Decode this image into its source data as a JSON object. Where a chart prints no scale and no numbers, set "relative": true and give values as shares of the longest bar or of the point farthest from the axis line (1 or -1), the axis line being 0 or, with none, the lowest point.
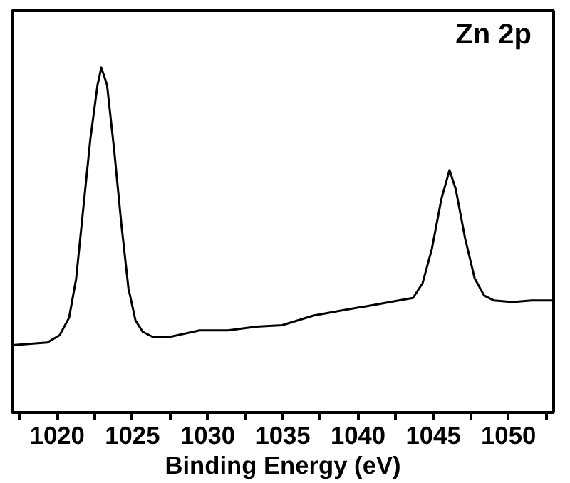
{
  "chart_data": {
    "type": "line",
    "relative": true,
    "xlabel": "Binding Energy (eV)",
    "annotations": [
      "Zn  2p"
    ],
    "xlim": [
      1017,
      1053
    ],
    "xticks": [
      {
        "value": 1017.5,
        "label": null
      },
      1020,
      {
        "value": 1022.5,
        "label": null
      },
      1025,
      {
        "value": 1027.5,
        "label": null
      },
      1030,
      {
        "value": 1032.5,
        "label": null
      },
      1035,
      {
        "value": 1037.5,
        "label": null
      },
      1040,
      {
        "value": 1042.5,
        "label": null
      },
      1045,
      {
        "value": 1047.5,
        "label": null
      },
      1050,
      {
        "value": 1052.5,
        "label": null
      }
    ],
    "tick_labels": "x",
    "grid": false,
    "series": [
      {
        "color": "#000000",
        "x": [
          1017.0,
          1019.34,
          1020.16,
          1020.79,
          1021.26,
          1021.73,
          1022.2,
          1022.68,
          1022.93,
          1023.31,
          1023.78,
          1024.26,
          1024.73,
          1025.2,
          1025.68,
          1026.31,
          1027.57,
          1029.46,
          1031.35,
          1033.25,
          1034.95,
          1037.03,
          1038.92,
          1040.81,
          1042.71,
          1043.65,
          1044.29,
          1044.91,
          1045.54,
          1046.08,
          1046.49,
          1047.12,
          1047.75,
          1048.38,
          1049.02,
          1050.27,
          1051.53,
          1052.92
        ],
        "values": [
          0.195,
          0.203,
          0.224,
          0.275,
          0.389,
          0.591,
          0.792,
          0.95,
          1.0,
          0.95,
          0.763,
          0.547,
          0.361,
          0.267,
          0.234,
          0.22,
          0.22,
          0.238,
          0.238,
          0.249,
          0.253,
          0.281,
          0.296,
          0.31,
          0.325,
          0.332,
          0.375,
          0.475,
          0.619,
          0.703,
          0.648,
          0.504,
          0.389,
          0.339,
          0.325,
          0.32,
          0.325,
          0.325
        ]
      }
    ]
  }
}
